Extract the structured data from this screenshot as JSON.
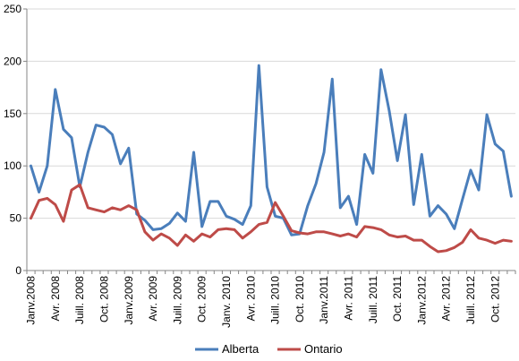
{
  "chart_data": {
    "type": "line",
    "title": "",
    "xlabel": "",
    "ylabel": "",
    "ylim": [
      0,
      250
    ],
    "yticks": [
      0,
      50,
      100,
      150,
      200,
      250
    ],
    "grid": "horizontal",
    "legend_position": "bottom",
    "x_tick_labels": [
      "Janv.2008",
      "Avr. 2008",
      "Juill. 2008",
      "Oct. 2008",
      "Janv.2009",
      "Avr. 2009",
      "Juill. 2009",
      "Oct. 2009",
      "Janv. 2010",
      "Avr. 2010",
      "Juill. 2010",
      "Oct. 2010",
      "Janv.2011",
      "Avr. 2011",
      "Juill. 2011",
      "Oct. 2011",
      "Janv.2012",
      "Avr. 2012",
      "Juill. 2012",
      "Oct. 2012"
    ],
    "series": [
      {
        "name": "Alberta",
        "color": "#4a7ebb",
        "values": [
          100,
          75,
          100,
          173,
          135,
          127,
          80,
          113,
          139,
          137,
          130,
          102,
          117,
          54,
          48,
          39,
          40,
          45,
          55,
          47,
          113,
          42,
          66,
          66,
          52,
          49,
          44,
          62,
          196,
          80,
          52,
          50,
          34,
          35,
          62,
          83,
          113,
          183,
          60,
          71,
          44,
          111,
          93,
          192,
          153,
          105,
          149,
          63,
          111,
          52,
          62,
          54,
          40,
          68,
          96,
          77,
          149,
          121,
          114,
          71
        ]
      },
      {
        "name": "Ontario",
        "color": "#be4b48",
        "values": [
          50,
          67,
          69,
          63,
          47,
          77,
          82,
          60,
          58,
          56,
          60,
          58,
          62,
          58,
          37,
          29,
          35,
          31,
          24,
          34,
          28,
          35,
          32,
          39,
          40,
          39,
          31,
          37,
          44,
          46,
          65,
          52,
          38,
          36,
          35,
          37,
          37,
          35,
          33,
          35,
          32,
          42,
          41,
          39,
          34,
          32,
          33,
          29,
          29,
          23,
          18,
          19,
          22,
          27,
          39,
          31,
          29,
          26,
          29,
          28
        ]
      }
    ]
  }
}
